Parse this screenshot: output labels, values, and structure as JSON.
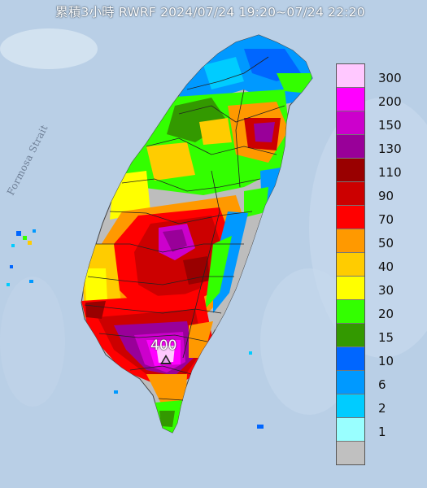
{
  "title": "累積3小時 RWRF 2024/07/24 19:20~07/24 22:20",
  "strait_label": "Formosa Strait",
  "peak_label": "400",
  "legend": [
    {
      "label": "300",
      "color": "#ffc8ff"
    },
    {
      "label": "200",
      "color": "#ff00ff"
    },
    {
      "label": "150",
      "color": "#cc00cc"
    },
    {
      "label": "130",
      "color": "#990099"
    },
    {
      "label": "110",
      "color": "#990000"
    },
    {
      "label": "90",
      "color": "#cc0000"
    },
    {
      "label": "70",
      "color": "#ff0000"
    },
    {
      "label": "50",
      "color": "#ff9900"
    },
    {
      "label": "40",
      "color": "#ffcc00"
    },
    {
      "label": "30",
      "color": "#ffff00"
    },
    {
      "label": "20",
      "color": "#33ff00"
    },
    {
      "label": "15",
      "color": "#339900"
    },
    {
      "label": "10",
      "color": "#0066ff"
    },
    {
      "label": "6",
      "color": "#0099ff"
    },
    {
      "label": "2",
      "color": "#00ccff"
    },
    {
      "label": "1",
      "color": "#99ffff"
    },
    {
      "label": "",
      "color": "#c0c0c0"
    }
  ]
}
